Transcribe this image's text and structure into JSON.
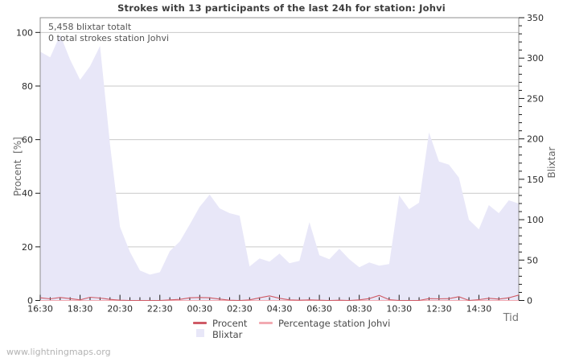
{
  "title": "Strokes with 13 participants of the last 24h for station: Johvi",
  "annotations": {
    "total_strokes": "5,458 blixtar totalt",
    "station_strokes": "0 total strokes station Johvi"
  },
  "watermark": "www.lightningmaps.org",
  "axes": {
    "left": {
      "label": "Procent  [%]",
      "ticks": [
        0,
        20,
        40,
        60,
        80,
        100
      ],
      "range": [
        0,
        105.5
      ]
    },
    "right": {
      "label": "Blixtar",
      "ticks": [
        0,
        50,
        100,
        150,
        200,
        250,
        300,
        350
      ],
      "minor_step": 10,
      "range": [
        0,
        350
      ]
    },
    "bottom": {
      "label": "Tid",
      "tick_labels": [
        "16:30",
        "18:30",
        "20:30",
        "22:30",
        "00:30",
        "02:30",
        "04:30",
        "06:30",
        "08:30",
        "10:30",
        "12:30",
        "14:30"
      ]
    }
  },
  "legend": {
    "procent": {
      "label": "Procent",
      "color": "#cf5b66"
    },
    "percentage_station": {
      "label": "Percentage station Johvi",
      "color": "#f2aab2"
    },
    "blixtar": {
      "label": "Blixtar",
      "color": "#e8e7f8"
    }
  },
  "colors": {
    "area_fill": "#e8e7f8",
    "procent_line": "#cf5b66",
    "station_line": "#f2aab2",
    "grid": "#c9c9c9",
    "frame": "#8f8f8f",
    "tick": "#1a1a1a",
    "tick_label": "#2b2b2b"
  },
  "chart_data": {
    "type": "area",
    "grid": true,
    "x": [
      "16:30",
      "17:00",
      "17:30",
      "18:00",
      "18:30",
      "19:00",
      "19:30",
      "20:00",
      "20:30",
      "21:00",
      "21:30",
      "22:00",
      "22:30",
      "23:00",
      "23:30",
      "00:00",
      "00:30",
      "01:00",
      "01:30",
      "02:00",
      "02:30",
      "03:00",
      "03:30",
      "04:00",
      "04:30",
      "05:00",
      "05:30",
      "06:00",
      "06:30",
      "07:00",
      "07:30",
      "08:00",
      "08:30",
      "09:00",
      "09:30",
      "10:00",
      "10:30",
      "11:00",
      "11:30",
      "12:00",
      "12:30",
      "13:00",
      "13:30",
      "14:00",
      "14:30",
      "15:00",
      "15:30",
      "16:00",
      "16:30"
    ],
    "left_ylim": [
      0,
      100
    ],
    "right_ylim": [
      0,
      350
    ],
    "series": [
      {
        "name": "Blixtar",
        "type": "area",
        "axis": "right",
        "values": [
          308,
          301,
          329,
          298,
          273,
          290,
          315,
          193,
          91,
          60,
          37,
          32,
          35,
          61,
          73,
          94,
          116,
          131,
          114,
          108,
          105,
          42,
          52,
          48,
          58,
          46,
          49,
          97,
          56,
          51,
          64,
          51,
          41,
          47,
          43,
          45,
          130,
          113,
          121,
          208,
          172,
          168,
          152,
          100,
          88,
          118,
          108,
          124,
          120
        ]
      },
      {
        "name": "Procent",
        "type": "line",
        "axis": "left",
        "values": [
          1.0,
          0.6,
          1.1,
          0.7,
          0.2,
          1.2,
          0.9,
          0.4,
          0.1,
          0,
          0,
          0,
          0,
          0.2,
          0.4,
          1.0,
          1.1,
          1.0,
          0.5,
          0.1,
          0,
          0.2,
          1.0,
          1.7,
          0.8,
          0.2,
          0.1,
          0.2,
          0.1,
          0,
          0.1,
          0,
          0.2,
          0.7,
          1.9,
          0.3,
          0,
          0,
          0,
          0.7,
          0.6,
          0.7,
          1.4,
          0,
          0.3,
          0.8,
          0.5,
          1.0,
          2.0
        ]
      },
      {
        "name": "Percentage station Johvi",
        "type": "line",
        "axis": "left",
        "values": [
          0,
          0,
          0,
          0,
          0,
          0,
          0,
          0,
          0,
          0,
          0,
          0,
          0,
          0,
          0,
          0,
          0,
          0,
          0,
          0,
          0,
          0,
          0,
          0,
          0,
          0,
          0,
          0,
          0,
          0,
          0,
          0,
          0,
          0,
          0,
          0,
          0,
          0,
          0,
          0,
          0,
          0,
          0,
          0,
          0,
          0,
          0,
          0,
          0
        ]
      }
    ]
  }
}
